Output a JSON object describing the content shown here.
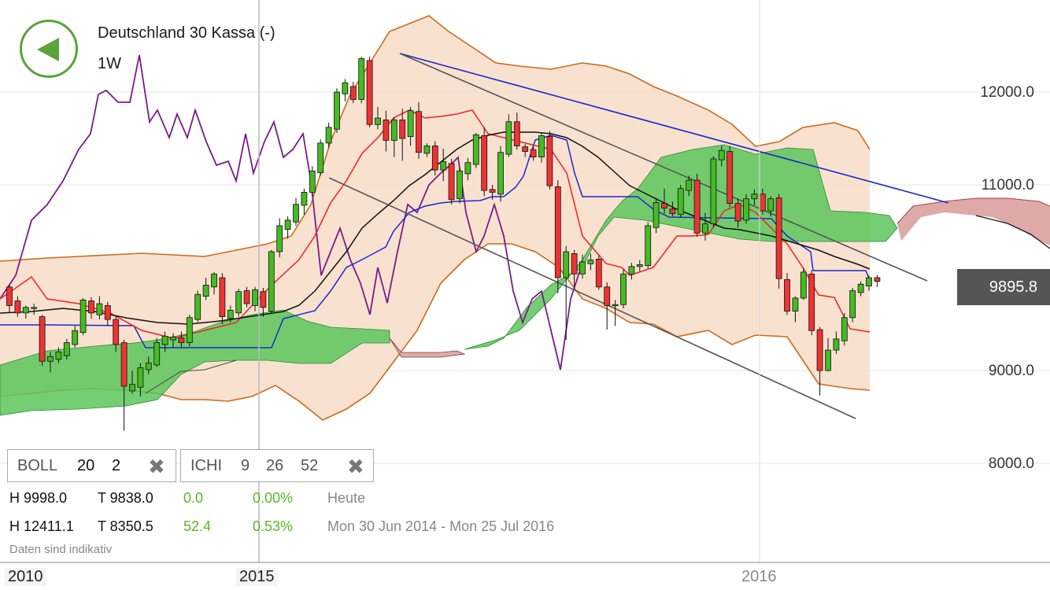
{
  "header": {
    "title": "Deutschland 30 Kassa (-)",
    "interval": "1W"
  },
  "buttons": {
    "back_icon": "back-triangle-icon"
  },
  "axis": {
    "y_labels": [
      "12000.0",
      "11000.0",
      "9000.0",
      "8000.0"
    ],
    "x_labels": [
      "2010",
      "2015",
      "2016"
    ]
  },
  "current_price": "9895.8",
  "indicators": [
    {
      "name": "BOLL",
      "params": [
        "20",
        "2"
      ]
    },
    {
      "name": "ICHI",
      "params": [
        "9",
        "26",
        "52"
      ]
    }
  ],
  "stats": {
    "row1": {
      "high": "H 9998.0",
      "low": "T 9838.0",
      "change": "0.0",
      "change_pct": "0.00%",
      "period": "Heute"
    },
    "row2": {
      "high": "H 12411.1",
      "low": "T 8350.5",
      "change": "52.4",
      "change_pct": "0.53%",
      "period": "Mon 30 Jun 2014 - Mon 25 Jul 2016"
    }
  },
  "disclaimer": "Daten sind indikativ",
  "colors": {
    "up": "#44bb22",
    "down": "#ee3333",
    "accent": "#5aa33a",
    "cloud_bull": "#5cc55c",
    "cloud_bear": "#d9a0a0",
    "boll_fill": "#f8dcc8",
    "boll_line": "#cc6a1a"
  },
  "chart_data": {
    "type": "candlestick",
    "title": "Deutschland 30 Kassa (-)",
    "interval": "1W",
    "ylim": [
      8000,
      12000
    ],
    "y_ticks": [
      12000,
      11000,
      9000,
      8000
    ],
    "last_price": 9895.8,
    "period_high": 12411.1,
    "period_low": 8350.5,
    "candles": [
      [
        9900,
        9700,
        9920,
        9620
      ],
      [
        9750,
        9620,
        9800,
        9580
      ],
      [
        9620,
        9680,
        9700,
        9560
      ],
      [
        9680,
        9680,
        9720,
        9600
      ],
      [
        9580,
        9100,
        9600,
        9050
      ],
      [
        9100,
        9150,
        9200,
        8980
      ],
      [
        9120,
        9200,
        9250,
        9080
      ],
      [
        9160,
        9300,
        9340,
        9120
      ],
      [
        9280,
        9430,
        9480,
        9250
      ],
      [
        9410,
        9760,
        9780,
        9380
      ],
      [
        9750,
        9620,
        9790,
        9560
      ],
      [
        9600,
        9720,
        9800,
        9550
      ],
      [
        9700,
        9550,
        9740,
        9480
      ],
      [
        9550,
        9280,
        9580,
        9200
      ],
      [
        9300,
        8830,
        9330,
        8350
      ],
      [
        8780,
        8850,
        9000,
        8750
      ],
      [
        8820,
        9030,
        9080,
        8720
      ],
      [
        9010,
        9080,
        9150,
        8960
      ],
      [
        9060,
        9300,
        9350,
        9040
      ],
      [
        9280,
        9370,
        9420,
        9200
      ],
      [
        9330,
        9360,
        9400,
        9250
      ],
      [
        9350,
        9300,
        9420,
        9250
      ],
      [
        9300,
        9570,
        9600,
        9260
      ],
      [
        9550,
        9820,
        9860,
        9520
      ],
      [
        9800,
        9920,
        10000,
        9760
      ],
      [
        9900,
        10040,
        10060,
        9820
      ],
      [
        10000,
        9580,
        10050,
        9500
      ],
      [
        9560,
        9650,
        9700,
        9520
      ],
      [
        9620,
        9850,
        9880,
        9580
      ],
      [
        9860,
        9720,
        9900,
        9680
      ],
      [
        9700,
        9870,
        9900,
        9640
      ],
      [
        9850,
        9680,
        9890,
        9580
      ],
      [
        9640,
        10280,
        10300,
        9620
      ],
      [
        10280,
        10560,
        10640,
        10220
      ],
      [
        10520,
        10620,
        10660,
        10420
      ],
      [
        10600,
        10790,
        10860,
        10560
      ],
      [
        10780,
        10920,
        10960,
        10680
      ],
      [
        10920,
        11150,
        11200,
        10880
      ],
      [
        11130,
        11450,
        11490,
        11100
      ],
      [
        11450,
        11620,
        11670,
        11400
      ],
      [
        11600,
        12000,
        12040,
        11560
      ],
      [
        11980,
        12100,
        12140,
        11900
      ],
      [
        12060,
        11920,
        12110,
        11880
      ],
      [
        11920,
        12360,
        12380,
        11880
      ],
      [
        12340,
        11650,
        12380,
        11620
      ],
      [
        11650,
        11720,
        11840,
        11600
      ],
      [
        11700,
        11480,
        11800,
        11360
      ],
      [
        11480,
        11700,
        11730,
        11300
      ],
      [
        11700,
        11500,
        11820,
        11260
      ],
      [
        11520,
        11800,
        11840,
        11420
      ],
      [
        11790,
        11350,
        11890,
        11280
      ],
      [
        11340,
        11420,
        11450,
        11300
      ],
      [
        11420,
        11160,
        11470,
        11100
      ],
      [
        11160,
        11250,
        11390,
        11040
      ],
      [
        11230,
        10840,
        11280,
        10790
      ],
      [
        10850,
        11150,
        11180,
        10800
      ],
      [
        11120,
        11240,
        11290,
        11050
      ],
      [
        11220,
        11540,
        11560,
        11180
      ],
      [
        11530,
        10940,
        11620,
        10880
      ],
      [
        10950,
        10920,
        11000,
        10840
      ],
      [
        10900,
        11350,
        11420,
        10820
      ],
      [
        11330,
        11680,
        11760,
        11300
      ],
      [
        11680,
        11420,
        11780,
        11380
      ],
      [
        11410,
        11360,
        11440,
        11300
      ],
      [
        11380,
        11300,
        11420,
        11260
      ],
      [
        11300,
        11530,
        11560,
        11240
      ],
      [
        11520,
        10990,
        11580,
        10950
      ],
      [
        10980,
        10000,
        11050,
        9830
      ],
      [
        10000,
        10280,
        10340,
        9330
      ],
      [
        10260,
        10040,
        10300,
        9900
      ],
      [
        10040,
        10170,
        10250,
        9990
      ],
      [
        10150,
        10190,
        10260,
        10080
      ],
      [
        10200,
        9900,
        10240,
        9870
      ],
      [
        9900,
        9700,
        9950,
        9440
      ],
      [
        9700,
        9710,
        9760,
        9480
      ],
      [
        9710,
        10040,
        10090,
        9670
      ],
      [
        10040,
        10120,
        10160,
        9980
      ],
      [
        10120,
        10140,
        10190,
        10070
      ],
      [
        10130,
        10560,
        10600,
        10100
      ],
      [
        10540,
        10810,
        10860,
        10480
      ],
      [
        10800,
        10750,
        10960,
        10690
      ],
      [
        10740,
        10690,
        10820,
        10660
      ],
      [
        10680,
        10960,
        11000,
        10650
      ],
      [
        10940,
        11050,
        11100,
        10880
      ],
      [
        11050,
        10480,
        11120,
        10440
      ],
      [
        10480,
        10580,
        10700,
        10400
      ],
      [
        10580,
        11280,
        11310,
        10540
      ],
      [
        11270,
        11370,
        11420,
        11200
      ],
      [
        11360,
        10800,
        11420,
        10760
      ],
      [
        10800,
        10610,
        10850,
        10540
      ],
      [
        10620,
        10850,
        10900,
        10580
      ],
      [
        10850,
        10900,
        10950,
        10780
      ],
      [
        10900,
        10720,
        10960,
        10680
      ],
      [
        10720,
        10850,
        10880,
        10660
      ],
      [
        10860,
        9990,
        10900,
        9880
      ],
      [
        9980,
        9640,
        10050,
        9600
      ],
      [
        9640,
        9780,
        9800,
        9520
      ],
      [
        9780,
        10060,
        10100,
        9760
      ],
      [
        10040,
        9430,
        10080,
        9380
      ],
      [
        9440,
        9000,
        9470,
        8730
      ],
      [
        9000,
        9220,
        9350,
        8990
      ],
      [
        9220,
        9340,
        9420,
        9180
      ],
      [
        9320,
        9570,
        9620,
        9270
      ],
      [
        9570,
        9860,
        9890,
        9520
      ],
      [
        9840,
        9930,
        9960,
        9800
      ],
      [
        9910,
        10000,
        10020,
        9860
      ],
      [
        10000,
        9960,
        10030,
        9900
      ]
    ],
    "series": [
      {
        "name": "BOLL",
        "params": [
          20,
          2
        ]
      },
      {
        "name": "ICHI",
        "params": [
          9,
          26,
          52
        ]
      }
    ]
  }
}
